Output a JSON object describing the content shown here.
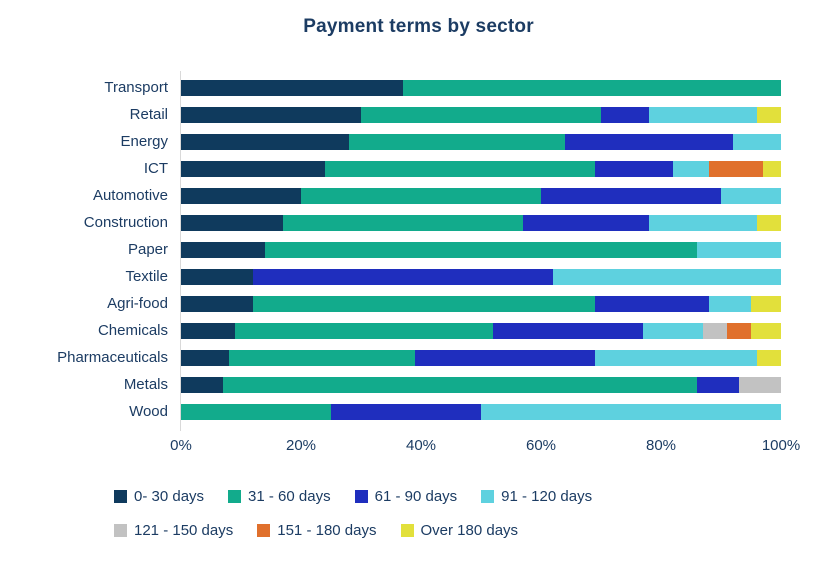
{
  "title": "Payment terms by sector",
  "text_color": "#1c3c63",
  "axis_line_color": "#d9d9d9",
  "chart_data": {
    "type": "bar",
    "orientation": "horizontal",
    "stacked": true,
    "unit": "percent",
    "title": "Payment terms by sector",
    "xlabel": "",
    "ylabel": "",
    "xlim": [
      0,
      100
    ],
    "x_ticks": [
      "0%",
      "20%",
      "40%",
      "60%",
      "80%",
      "100%"
    ],
    "grid": false,
    "legend_position": "bottom",
    "legend_rows": [
      4,
      3
    ],
    "categories": [
      "Transport",
      "Retail",
      "Energy",
      "ICT",
      "Automotive",
      "Construction",
      "Paper",
      "Textile",
      "Agri-food",
      "Chemicals",
      "Pharmaceuticals",
      "Metals",
      "Wood"
    ],
    "series": [
      {
        "name": "0- 30 days",
        "color": "#0f3a5d",
        "values": [
          37,
          30,
          28,
          24,
          20,
          17,
          14,
          12,
          12,
          9,
          8,
          7,
          0
        ]
      },
      {
        "name": "31 - 60 days",
        "color": "#12ab8c",
        "values": [
          63,
          40,
          36,
          45,
          40,
          40,
          72,
          0,
          57,
          43,
          31,
          79,
          25
        ]
      },
      {
        "name": "61 - 90 days",
        "color": "#1f2ebe",
        "values": [
          0,
          8,
          28,
          13,
          30,
          21,
          0,
          50,
          19,
          25,
          30,
          7,
          25
        ]
      },
      {
        "name": "91 - 120 days",
        "color": "#5ed1df",
        "values": [
          0,
          18,
          8,
          6,
          10,
          18,
          14,
          38,
          7,
          10,
          27,
          0,
          50
        ]
      },
      {
        "name": "121 - 150 days",
        "color": "#c2c2c2",
        "values": [
          0,
          0,
          0,
          0,
          0,
          0,
          0,
          0,
          0,
          4,
          0,
          7,
          0
        ]
      },
      {
        "name": "151 - 180 days",
        "color": "#e0702c",
        "values": [
          0,
          0,
          0,
          9,
          0,
          0,
          0,
          0,
          0,
          4,
          0,
          0,
          0
        ]
      },
      {
        "name": "Over 180 days",
        "color": "#e2e03b",
        "values": [
          0,
          4,
          0,
          3,
          0,
          4,
          0,
          0,
          5,
          5,
          4,
          0,
          0
        ]
      }
    ]
  }
}
